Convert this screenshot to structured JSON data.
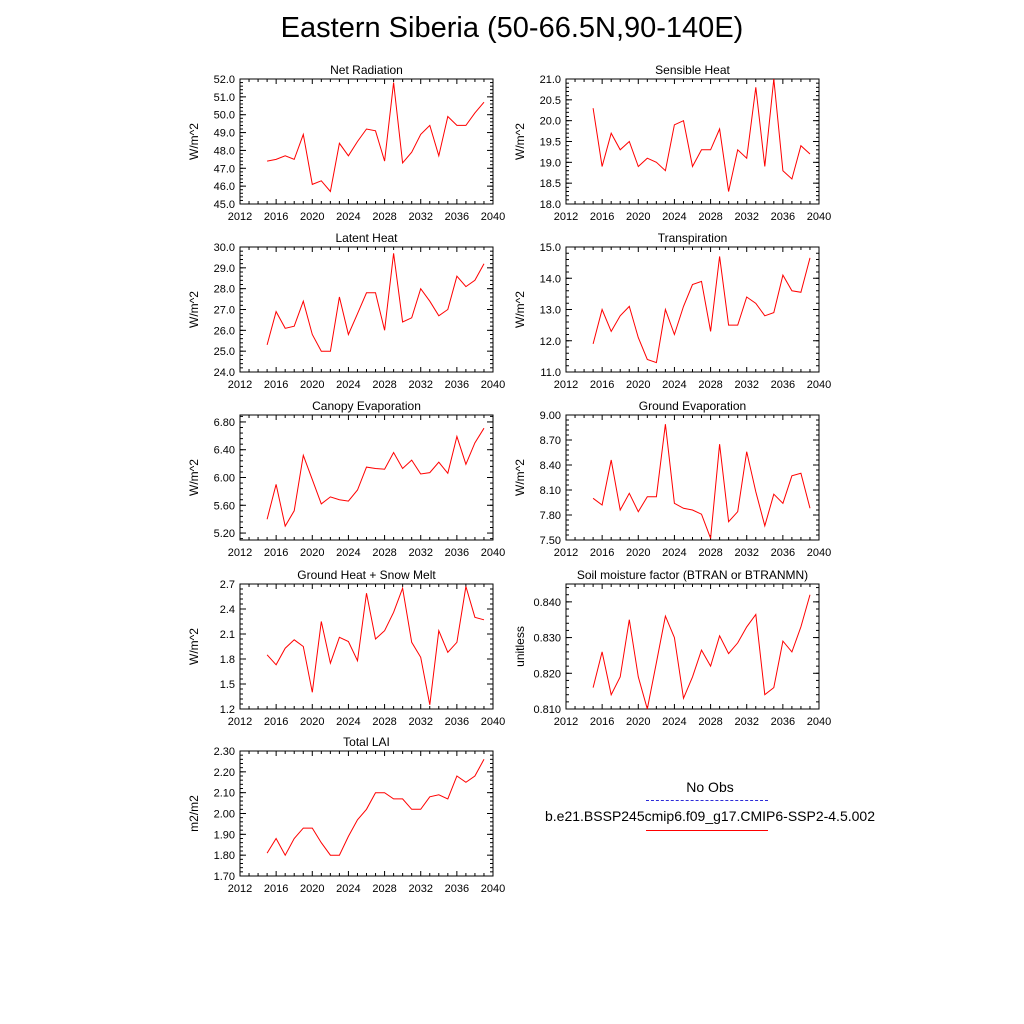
{
  "title": "Eastern Siberia (50-66.5N,90-140E)",
  "colors": {
    "model": "#ff0000",
    "obs": "#2b2bd9"
  },
  "legend": {
    "obs_label": "No Obs",
    "model_label": "b.e21.BSSP245cmip6.f09_g17.CMIP6-SSP2-4.5.002"
  },
  "chart_data": [
    {
      "type": "line",
      "title": "Net Radiation",
      "ylabel": "W/m^2",
      "xlim": [
        2012,
        2040
      ],
      "xticks": [
        "2012",
        "2016",
        "2020",
        "2024",
        "2028",
        "2032",
        "2036",
        "2040"
      ],
      "ylim": [
        45.0,
        52.0
      ],
      "yticks": [
        "45.0",
        "46.0",
        "47.0",
        "48.0",
        "49.0",
        "50.0",
        "51.0",
        "52.0"
      ],
      "x": [
        2015,
        2016,
        2017,
        2018,
        2019,
        2020,
        2021,
        2022,
        2023,
        2024,
        2025,
        2026,
        2027,
        2028,
        2029,
        2030,
        2031,
        2032,
        2033,
        2034,
        2035,
        2036,
        2037,
        2038,
        2039
      ],
      "series": [
        {
          "values": [
            47.4,
            47.5,
            47.7,
            47.5,
            48.9,
            46.1,
            46.3,
            45.7,
            48.4,
            47.7,
            48.5,
            49.2,
            49.1,
            47.4,
            51.8,
            47.3,
            47.9,
            48.9,
            49.4,
            47.7,
            49.9,
            49.4,
            49.4,
            50.1,
            50.7
          ]
        }
      ]
    },
    {
      "type": "line",
      "title": "Sensible Heat",
      "ylabel": "W/m^2",
      "xlim": [
        2012,
        2040
      ],
      "xticks": [
        "2012",
        "2016",
        "2020",
        "2024",
        "2028",
        "2032",
        "2036",
        "2040"
      ],
      "ylim": [
        18.0,
        21.0
      ],
      "yticks": [
        "18.0",
        "18.5",
        "19.0",
        "19.5",
        "20.0",
        "20.5",
        "21.0"
      ],
      "x": [
        2015,
        2016,
        2017,
        2018,
        2019,
        2020,
        2021,
        2022,
        2023,
        2024,
        2025,
        2026,
        2027,
        2028,
        2029,
        2030,
        2031,
        2032,
        2033,
        2034,
        2035,
        2036,
        2037,
        2038,
        2039
      ],
      "series": [
        {
          "values": [
            20.3,
            18.9,
            19.7,
            19.3,
            19.5,
            18.9,
            19.1,
            19.0,
            18.8,
            19.9,
            20.0,
            18.9,
            19.3,
            19.3,
            19.8,
            18.3,
            19.3,
            19.1,
            20.8,
            18.9,
            21.0,
            18.8,
            18.6,
            19.4,
            19.2
          ]
        }
      ]
    },
    {
      "type": "line",
      "title": "Latent Heat",
      "ylabel": "W/m^2",
      "xlim": [
        2012,
        2040
      ],
      "xticks": [
        "2012",
        "2016",
        "2020",
        "2024",
        "2028",
        "2032",
        "2036",
        "2040"
      ],
      "ylim": [
        24.0,
        30.0
      ],
      "yticks": [
        "24.0",
        "25.0",
        "26.0",
        "27.0",
        "28.0",
        "29.0",
        "30.0"
      ],
      "x": [
        2015,
        2016,
        2017,
        2018,
        2019,
        2020,
        2021,
        2022,
        2023,
        2024,
        2025,
        2026,
        2027,
        2028,
        2029,
        2030,
        2031,
        2032,
        2033,
        2034,
        2035,
        2036,
        2037,
        2038,
        2039
      ],
      "series": [
        {
          "values": [
            25.3,
            26.9,
            26.1,
            26.2,
            27.4,
            25.8,
            25.0,
            25.0,
            27.6,
            25.8,
            26.8,
            27.8,
            27.8,
            26.0,
            29.7,
            26.4,
            26.6,
            28.0,
            27.4,
            26.7,
            27.0,
            28.6,
            28.1,
            28.4,
            29.2
          ]
        }
      ]
    },
    {
      "type": "line",
      "title": "Transpiration",
      "ylabel": "W/m^2",
      "xlim": [
        2012,
        2040
      ],
      "xticks": [
        "2012",
        "2016",
        "2020",
        "2024",
        "2028",
        "2032",
        "2036",
        "2040"
      ],
      "ylim": [
        11.0,
        15.0
      ],
      "yticks": [
        "11.0",
        "12.0",
        "13.0",
        "14.0",
        "15.0"
      ],
      "x": [
        2015,
        2016,
        2017,
        2018,
        2019,
        2020,
        2021,
        2022,
        2023,
        2024,
        2025,
        2026,
        2027,
        2028,
        2029,
        2030,
        2031,
        2032,
        2033,
        2034,
        2035,
        2036,
        2037,
        2038,
        2039
      ],
      "series": [
        {
          "values": [
            11.9,
            13.0,
            12.3,
            12.8,
            13.1,
            12.1,
            11.4,
            11.3,
            13.0,
            12.2,
            13.1,
            13.8,
            13.9,
            12.3,
            14.7,
            12.5,
            12.5,
            13.4,
            13.2,
            12.8,
            12.9,
            14.1,
            13.6,
            13.55,
            14.65
          ]
        }
      ]
    },
    {
      "type": "line",
      "title": "Canopy Evaporation",
      "ylabel": "W/m^2",
      "xlim": [
        2012,
        2040
      ],
      "xticks": [
        "2012",
        "2016",
        "2020",
        "2024",
        "2028",
        "2032",
        "2036",
        "2040"
      ],
      "ylim": [
        5.1,
        6.9
      ],
      "yticks": [
        "5.20",
        "5.60",
        "6.00",
        "6.40",
        "6.80"
      ],
      "x": [
        2015,
        2016,
        2017,
        2018,
        2019,
        2020,
        2021,
        2022,
        2023,
        2024,
        2025,
        2026,
        2027,
        2028,
        2029,
        2030,
        2031,
        2032,
        2033,
        2034,
        2035,
        2036,
        2037,
        2038,
        2039
      ],
      "series": [
        {
          "values": [
            5.4,
            5.9,
            5.3,
            5.52,
            6.32,
            5.97,
            5.62,
            5.72,
            5.68,
            5.66,
            5.82,
            6.15,
            6.13,
            6.12,
            6.36,
            6.13,
            6.25,
            6.05,
            6.07,
            6.22,
            6.06,
            6.59,
            6.19,
            6.5,
            6.71
          ]
        }
      ]
    },
    {
      "type": "line",
      "title": "Ground Evaporation",
      "ylabel": "W/m^2",
      "xlim": [
        2012,
        2040
      ],
      "xticks": [
        "2012",
        "2016",
        "2020",
        "2024",
        "2028",
        "2032",
        "2036",
        "2040"
      ],
      "ylim": [
        7.5,
        9.0
      ],
      "yticks": [
        "7.50",
        "7.80",
        "8.10",
        "8.40",
        "8.70",
        "9.00"
      ],
      "x": [
        2015,
        2016,
        2017,
        2018,
        2019,
        2020,
        2021,
        2022,
        2023,
        2024,
        2025,
        2026,
        2027,
        2028,
        2029,
        2030,
        2031,
        2032,
        2033,
        2034,
        2035,
        2036,
        2037,
        2038,
        2039
      ],
      "series": [
        {
          "values": [
            8.0,
            7.92,
            8.46,
            7.86,
            8.06,
            7.84,
            8.02,
            8.02,
            8.89,
            7.94,
            7.88,
            7.86,
            7.81,
            7.52,
            8.65,
            7.72,
            7.84,
            8.56,
            8.08,
            7.67,
            8.05,
            7.94,
            8.27,
            8.3,
            7.88
          ]
        }
      ]
    },
    {
      "type": "line",
      "title": "Ground Heat + Snow Melt",
      "ylabel": "W/m^2",
      "xlim": [
        2012,
        2040
      ],
      "xticks": [
        "2012",
        "2016",
        "2020",
        "2024",
        "2028",
        "2032",
        "2036",
        "2040"
      ],
      "ylim": [
        1.2,
        2.7
      ],
      "yticks": [
        "1.2",
        "1.5",
        "1.8",
        "2.1",
        "2.4",
        "2.7"
      ],
      "x": [
        2015,
        2016,
        2017,
        2018,
        2019,
        2020,
        2021,
        2022,
        2023,
        2024,
        2025,
        2026,
        2027,
        2028,
        2029,
        2030,
        2031,
        2032,
        2033,
        2034,
        2035,
        2036,
        2037,
        2038,
        2039
      ],
      "series": [
        {
          "values": [
            1.85,
            1.73,
            1.93,
            2.03,
            1.95,
            1.4,
            2.25,
            1.75,
            2.06,
            2.01,
            1.78,
            2.59,
            2.04,
            2.14,
            2.36,
            2.65,
            2.0,
            1.82,
            1.25,
            2.14,
            1.88,
            2.0,
            2.67,
            2.3,
            2.27
          ]
        }
      ]
    },
    {
      "type": "line",
      "title": "Soil moisture factor (BTRAN or BTRANMN)",
      "ylabel": "unitless",
      "xlim": [
        2012,
        2040
      ],
      "xticks": [
        "2012",
        "2016",
        "2020",
        "2024",
        "2028",
        "2032",
        "2036",
        "2040"
      ],
      "ylim": [
        0.81,
        0.845
      ],
      "yticks": [
        "0.810",
        "0.820",
        "0.830",
        "0.840"
      ],
      "x": [
        2015,
        2016,
        2017,
        2018,
        2019,
        2020,
        2021,
        2022,
        2023,
        2024,
        2025,
        2026,
        2027,
        2028,
        2029,
        2030,
        2031,
        2032,
        2033,
        2034,
        2035,
        2036,
        2037,
        2038,
        2039
      ],
      "series": [
        {
          "values": [
            0.816,
            0.826,
            0.814,
            0.819,
            0.835,
            0.819,
            0.81,
            0.823,
            0.836,
            0.83,
            0.813,
            0.819,
            0.8265,
            0.822,
            0.8305,
            0.8255,
            0.8285,
            0.833,
            0.8365,
            0.814,
            0.816,
            0.829,
            0.826,
            0.833,
            0.842
          ]
        }
      ]
    },
    {
      "type": "line",
      "title": "Total LAI",
      "ylabel": "m2/m2",
      "xlim": [
        2012,
        2040
      ],
      "xticks": [
        "2012",
        "2016",
        "2020",
        "2024",
        "2028",
        "2032",
        "2036",
        "2040"
      ],
      "ylim": [
        1.7,
        2.3
      ],
      "yticks": [
        "1.70",
        "1.80",
        "1.90",
        "2.00",
        "2.10",
        "2.20",
        "2.30"
      ],
      "x": [
        2015,
        2016,
        2017,
        2018,
        2019,
        2020,
        2021,
        2022,
        2023,
        2024,
        2025,
        2026,
        2027,
        2028,
        2029,
        2030,
        2031,
        2032,
        2033,
        2034,
        2035,
        2036,
        2037,
        2038,
        2039
      ],
      "series": [
        {
          "values": [
            1.81,
            1.88,
            1.8,
            1.88,
            1.93,
            1.93,
            1.86,
            1.8,
            1.8,
            1.89,
            1.97,
            2.02,
            2.1,
            2.1,
            2.07,
            2.07,
            2.02,
            2.02,
            2.08,
            2.09,
            2.07,
            2.18,
            2.15,
            2.18,
            2.26
          ]
        }
      ]
    }
  ]
}
